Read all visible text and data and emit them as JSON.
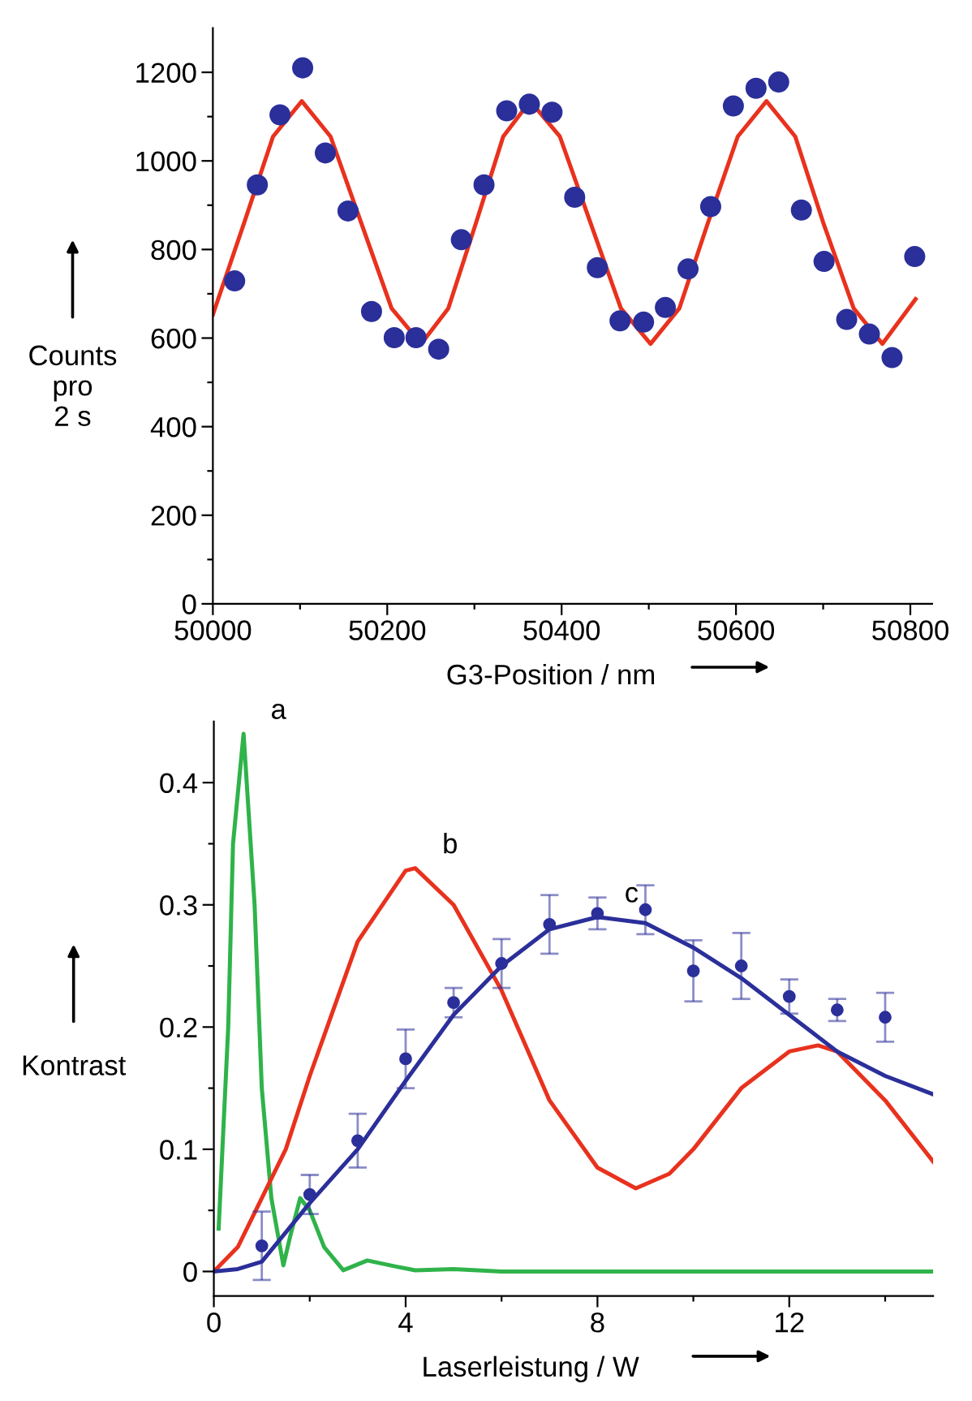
{
  "chart_data": [
    {
      "type": "scatter",
      "xlabel": "G3-Position / nm",
      "ylabel": "Counts\npro\n2 s",
      "xlim": [
        50000,
        50825
      ],
      "ylim": [
        0,
        1300
      ],
      "xticks": [
        50000,
        {
          "value": 50100,
          "label": null
        },
        50200,
        {
          "value": 50300,
          "label": null
        },
        50400,
        {
          "value": 50500,
          "label": null
        },
        50600,
        {
          "value": 50700,
          "label": null
        },
        50800
      ],
      "yticks": [
        0,
        {
          "value": 100,
          "label": null
        },
        200,
        {
          "value": 300,
          "label": null
        },
        400,
        {
          "value": 500,
          "label": null
        },
        600,
        {
          "value": 700,
          "label": null
        },
        800,
        {
          "value": 900,
          "label": null
        },
        1000,
        {
          "value": 1100,
          "label": null
        },
        1200
      ],
      "grid": false,
      "legend": false,
      "series": [
        {
          "type": "line",
          "color": "#e8321e",
          "x": [
            50000,
            50036,
            50069,
            50102,
            50135,
            50170,
            50205,
            50239,
            50270,
            50302,
            50333,
            50364,
            50398,
            50433,
            50468,
            50502,
            50535,
            50568,
            50602,
            50635,
            50668,
            50700,
            50735,
            50768,
            50806
          ],
          "values": [
            653,
            861,
            1055,
            1135,
            1055,
            861,
            667,
            587,
            667,
            861,
            1055,
            1135,
            1055,
            861,
            667,
            587,
            667,
            861,
            1055,
            1135,
            1055,
            861,
            667,
            587,
            688
          ]
        },
        {
          "color": "#2b2f9a",
          "marker": "circle",
          "x": [
            50025,
            50051,
            50077,
            50103,
            50129,
            50155,
            50182,
            50208,
            50233,
            50259,
            50285,
            50311,
            50337,
            50363,
            50389,
            50415,
            50441,
            50467,
            50494,
            50519,
            50545,
            50571,
            50597,
            50623,
            50649,
            50675,
            50701,
            50727,
            50753,
            50779,
            50805
          ],
          "values": [
            729,
            946,
            1104,
            1210,
            1018,
            887,
            660,
            601,
            601,
            575,
            822,
            946,
            1113,
            1128,
            1110,
            918,
            759,
            639,
            636,
            669,
            756,
            897,
            1124,
            1164,
            1178,
            889,
            773,
            642,
            609,
            556,
            784
          ]
        }
      ]
    },
    {
      "type": "line",
      "xlabel": "Laserleistung / W",
      "ylabel": "Kontrast",
      "xlim": [
        0,
        15
      ],
      "ylim": [
        -0.02,
        0.45
      ],
      "xticks": [
        0,
        {
          "value": 2,
          "label": null
        },
        4,
        {
          "value": 6,
          "label": null
        },
        8,
        {
          "value": 10,
          "label": null
        },
        12,
        {
          "value": 14,
          "label": null
        }
      ],
      "yticks": [
        0,
        {
          "value": 0.05,
          "label": null
        },
        0.1,
        {
          "value": 0.15,
          "label": null
        },
        0.2,
        {
          "value": 0.25,
          "label": null
        },
        0.3,
        {
          "value": 0.35,
          "label": null
        },
        0.4
      ],
      "grid": false,
      "legend": false,
      "annotations": [
        "a",
        "b",
        "c"
      ],
      "series": [
        {
          "color": "#2fb34a",
          "x": [
            0.1,
            0.3,
            0.4,
            0.62,
            0.85,
            1.0,
            1.2,
            1.45,
            1.6,
            1.8,
            2.0,
            2.3,
            2.7,
            3.2,
            3.8,
            4.2,
            5,
            6,
            15
          ],
          "values": [
            0.035,
            0.2,
            0.35,
            0.44,
            0.3,
            0.15,
            0.06,
            0.005,
            0.03,
            0.06,
            0.05,
            0.02,
            0.001,
            0.009,
            0.004,
            0.001,
            0.002,
            0.0,
            0.0
          ]
        },
        {
          "color": "#e8321e",
          "x": [
            0,
            0.5,
            1,
            1.5,
            2,
            3,
            4,
            4.2,
            5,
            6,
            7,
            8,
            8.8,
            9.5,
            10,
            11,
            12,
            12.6,
            13,
            14,
            15
          ],
          "values": [
            0,
            0.02,
            0.06,
            0.1,
            0.16,
            0.27,
            0.328,
            0.33,
            0.3,
            0.23,
            0.14,
            0.085,
            0.068,
            0.08,
            0.1,
            0.15,
            0.18,
            0.185,
            0.18,
            0.14,
            0.09
          ]
        },
        {
          "color": "#2b2f9a",
          "x": [
            0,
            0.5,
            1,
            2,
            3,
            4,
            5,
            6,
            7,
            8,
            9,
            10,
            11,
            12,
            13,
            14,
            15
          ],
          "values": [
            0,
            0.002,
            0.008,
            0.056,
            0.1,
            0.156,
            0.21,
            0.25,
            0.28,
            0.29,
            0.285,
            0.265,
            0.24,
            0.21,
            0.18,
            0.16,
            0.145
          ]
        },
        {
          "type": "scatter",
          "color": "#2b2f9a",
          "marker": "circle",
          "x": [
            1,
            2,
            3,
            4,
            5,
            6,
            7,
            8,
            9,
            10,
            11,
            12,
            13,
            14
          ],
          "values": [
            0.021,
            0.063,
            0.107,
            0.174,
            0.22,
            0.252,
            0.284,
            0.293,
            0.296,
            0.246,
            0.25,
            0.225,
            0.214,
            0.208
          ],
          "errors": [
            0.028,
            0.016,
            0.022,
            0.024,
            0.012,
            0.02,
            0.024,
            0.013,
            0.02,
            0.025,
            0.027,
            0.014,
            0.009,
            0.02
          ]
        }
      ]
    }
  ]
}
